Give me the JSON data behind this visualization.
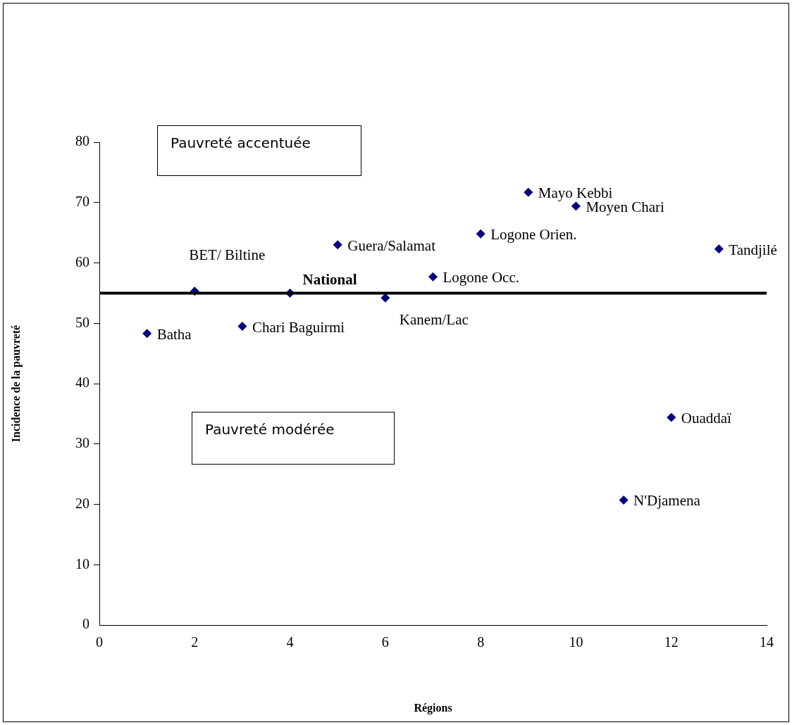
{
  "chart_data": {
    "type": "scatter",
    "xlabel": "Régions",
    "ylabel": "Incidence de la pauvreté",
    "x": [
      1,
      2,
      3,
      4,
      5,
      6,
      7,
      8,
      9,
      10,
      11,
      12,
      13
    ],
    "series": [
      {
        "color": "#000080",
        "values": [
          48.3,
          55.3,
          49.5,
          55.0,
          63.0,
          54.2,
          57.7,
          64.8,
          71.7,
          69.4,
          20.7,
          34.4,
          62.3
        ]
      }
    ],
    "xlim": [
      0,
      14
    ],
    "xticks": [
      0,
      2,
      4,
      6,
      8,
      10,
      12,
      14
    ],
    "ylim": [
      0,
      80
    ],
    "yticks": [
      0,
      10,
      20,
      30,
      40,
      50,
      60,
      70,
      80
    ],
    "grid": false,
    "legend": false,
    "marker": "diamond",
    "ref_lines": [
      {
        "axis": "y",
        "value": 55,
        "color": "#000000"
      }
    ],
    "annotations": [
      "Pauvreté accentuée",
      "Pauvreté modérée",
      {
        "text": "Batha",
        "x": 1,
        "y": 48.3
      },
      {
        "text": "BET/ Biltine",
        "x": 2,
        "y": 55.3
      },
      {
        "text": "Chari Baguirmi",
        "x": 3,
        "y": 49.5
      },
      {
        "text": "National",
        "x": 4,
        "y": 55.0
      },
      {
        "text": "Guera/Salamat",
        "x": 5,
        "y": 63.0
      },
      {
        "text": "Kanem/Lac",
        "x": 6,
        "y": 54.2
      },
      {
        "text": "Logone Occ.",
        "x": 7,
        "y": 57.7
      },
      {
        "text": "Logone Orien.",
        "x": 8,
        "y": 64.8
      },
      {
        "text": "Mayo Kebbi",
        "x": 9,
        "y": 71.7
      },
      {
        "text": "Moyen Chari",
        "x": 10,
        "y": 69.4
      },
      {
        "text": "N'Djamena",
        "x": 11,
        "y": 20.7
      },
      {
        "text": "Ouaddaï",
        "x": 12,
        "y": 34.4
      },
      {
        "text": "Tandjilé",
        "x": 13,
        "y": 62.3
      }
    ]
  }
}
